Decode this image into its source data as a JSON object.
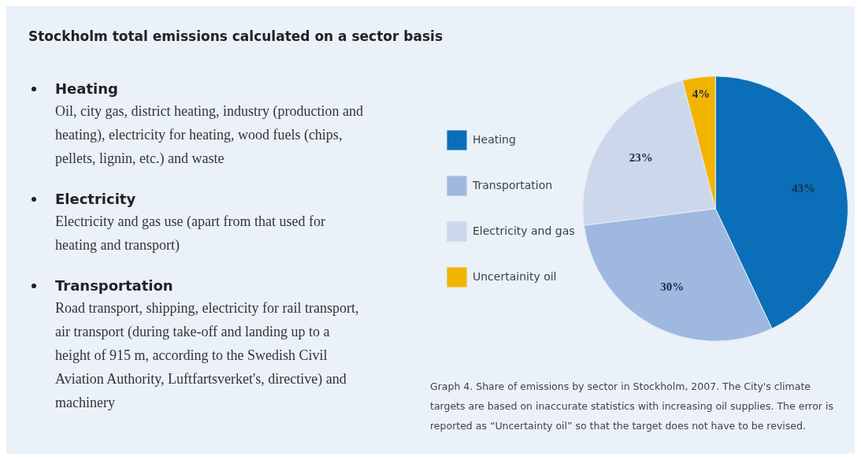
{
  "chart_data": {
    "type": "pie",
    "title": "Stockholm total emissions calculated on a sector basis",
    "categories": [
      "Heating",
      "Transportation",
      "Electricity and gas",
      "Uncertainity oil"
    ],
    "values": [
      43,
      30,
      23,
      4
    ],
    "colors": [
      "#0a6fb8",
      "#9fb8df",
      "#cdd7ec",
      "#f3b400"
    ],
    "value_labels": [
      "43%",
      "30%",
      "23%",
      "4%"
    ],
    "legend": "left",
    "annotations": [
      "Heating",
      "Oil, city gas, district heating, industry (production and heating), electricity for heating, wood fuels (chips, pellets, lignin, etc.) and waste",
      "Electricity",
      "Electricity and gas use (apart from that used for heating and transport)",
      "Transportation",
      "Road transport, shipping, electricity for rail transport, air transport (during take-off and landing up to a height of 915 m, according to the Swedish Civil Aviation Authority, Luftfartsverket's, directive) and machinery",
      "Graph 4. Share of emissions by sector in Stockholm, 2007. The City's climate targets are based on inaccurate statistics with increasing oil supplies. The error is reported as “Uncertainty oil” so that the target does not have to be revised."
    ]
  }
}
